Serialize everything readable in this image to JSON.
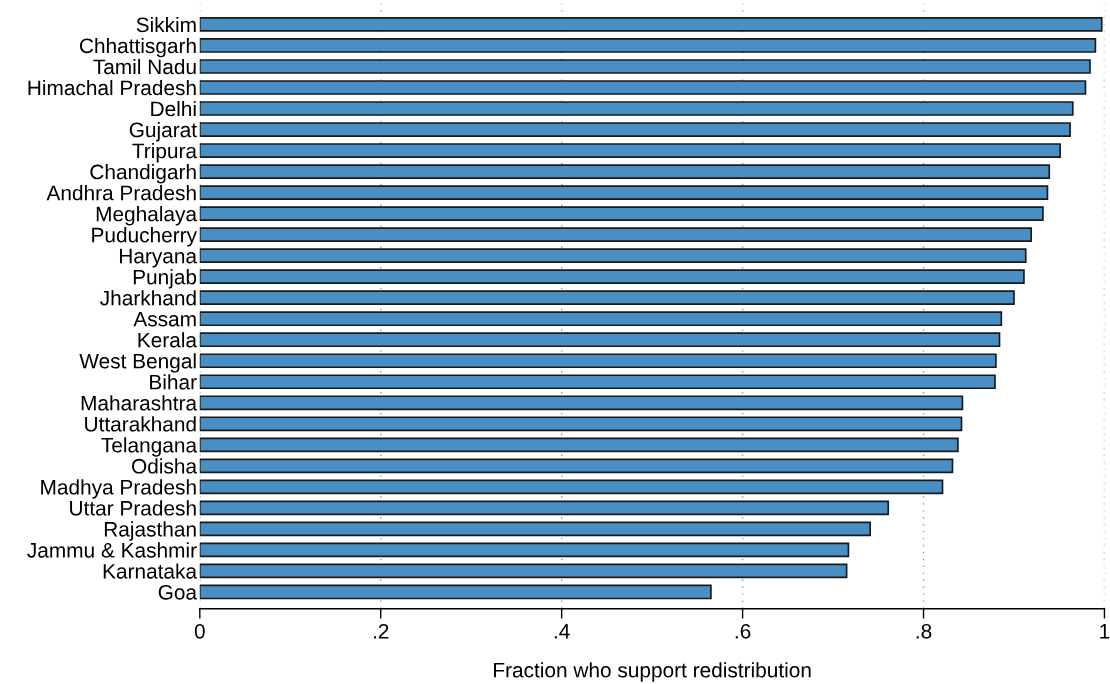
{
  "chart_data": {
    "type": "bar",
    "orientation": "horizontal",
    "xlabel": "Fraction who support redistribution",
    "categories": [
      "Sikkim",
      "Chhattisgarh",
      "Tamil Nadu",
      "Himachal Pradesh",
      "Delhi",
      "Gujarat",
      "Tripura",
      "Chandigarh",
      "Andhra Pradesh",
      "Meghalaya",
      "Puducherry",
      "Haryana",
      "Punjab",
      "Jharkhand",
      "Assam",
      "Kerala",
      "West Bengal",
      "Bihar",
      "Maharashtra",
      "Uttarakhand",
      "Telangana",
      "Odisha",
      "Madhya Pradesh",
      "Uttar Pradesh",
      "Rajasthan",
      "Jammu & Kashmir",
      "Karnataka",
      "Goa"
    ],
    "values": [
      0.997,
      0.99,
      0.984,
      0.979,
      0.965,
      0.962,
      0.951,
      0.939,
      0.937,
      0.932,
      0.919,
      0.913,
      0.911,
      0.9,
      0.886,
      0.884,
      0.88,
      0.879,
      0.843,
      0.842,
      0.838,
      0.832,
      0.821,
      0.761,
      0.741,
      0.717,
      0.715,
      0.565
    ],
    "color": "#4a8fc4",
    "xlim": [
      0,
      1
    ],
    "xticks": [
      0,
      {
        "value": 0.2,
        "label": ".2"
      },
      {
        "value": 0.4,
        "label": ".4"
      },
      {
        "value": 0.6,
        "label": ".6"
      },
      {
        "value": 0.8,
        "label": ".8"
      },
      1
    ],
    "grid": "x"
  }
}
